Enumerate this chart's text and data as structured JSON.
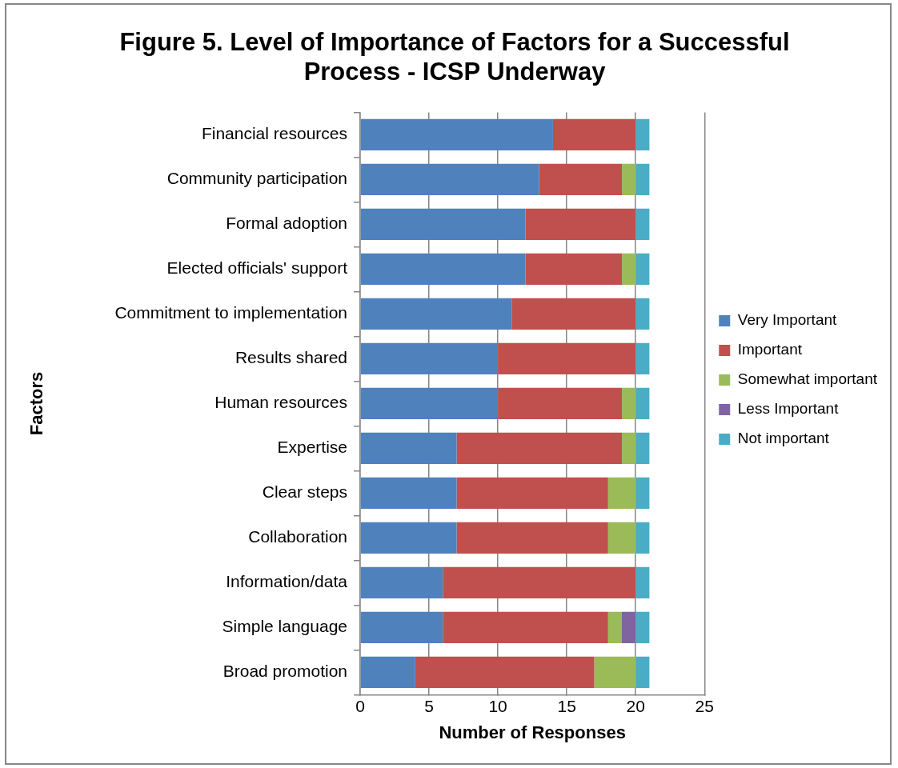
{
  "chart_data": {
    "type": "bar",
    "orientation": "horizontal",
    "stacked": true,
    "title": "Figure 5. Level of Importance of Factors for a Successful Process - ICSP Underway",
    "xlabel": "Number of Responses",
    "ylabel": "Factors",
    "categories": [
      "Financial resources",
      "Community participation",
      "Formal adoption",
      "Elected officials' support",
      "Commitment to implementation",
      "Results shared",
      "Human resources",
      "Expertise",
      "Clear steps",
      "Collaboration",
      "Information/data",
      "Simple language",
      "Broad promotion"
    ],
    "series": [
      {
        "name": "Very Important",
        "color": "#4f81bd",
        "values": [
          14,
          13,
          12,
          12,
          11,
          10,
          10,
          7,
          7,
          7,
          6,
          6,
          4
        ]
      },
      {
        "name": "Important",
        "color": "#c0504d",
        "values": [
          6,
          6,
          8,
          7,
          9,
          10,
          9,
          12,
          11,
          11,
          14,
          12,
          13
        ]
      },
      {
        "name": "Somewhat important",
        "color": "#9bbb59",
        "values": [
          0,
          1,
          0,
          1,
          0,
          0,
          1,
          1,
          2,
          2,
          0,
          1,
          3
        ]
      },
      {
        "name": "Less Important",
        "color": "#8064a2",
        "values": [
          0,
          0,
          0,
          0,
          0,
          0,
          0,
          0,
          0,
          0,
          0,
          1,
          0
        ]
      },
      {
        "name": "Not important",
        "color": "#4bacc6",
        "values": [
          1,
          1,
          1,
          1,
          1,
          1,
          1,
          1,
          1,
          1,
          1,
          1,
          1
        ]
      }
    ],
    "xlim": [
      0,
      25
    ],
    "xticks": [
      0,
      5,
      10,
      15,
      20,
      25
    ],
    "grid": "x",
    "legend": "right"
  }
}
